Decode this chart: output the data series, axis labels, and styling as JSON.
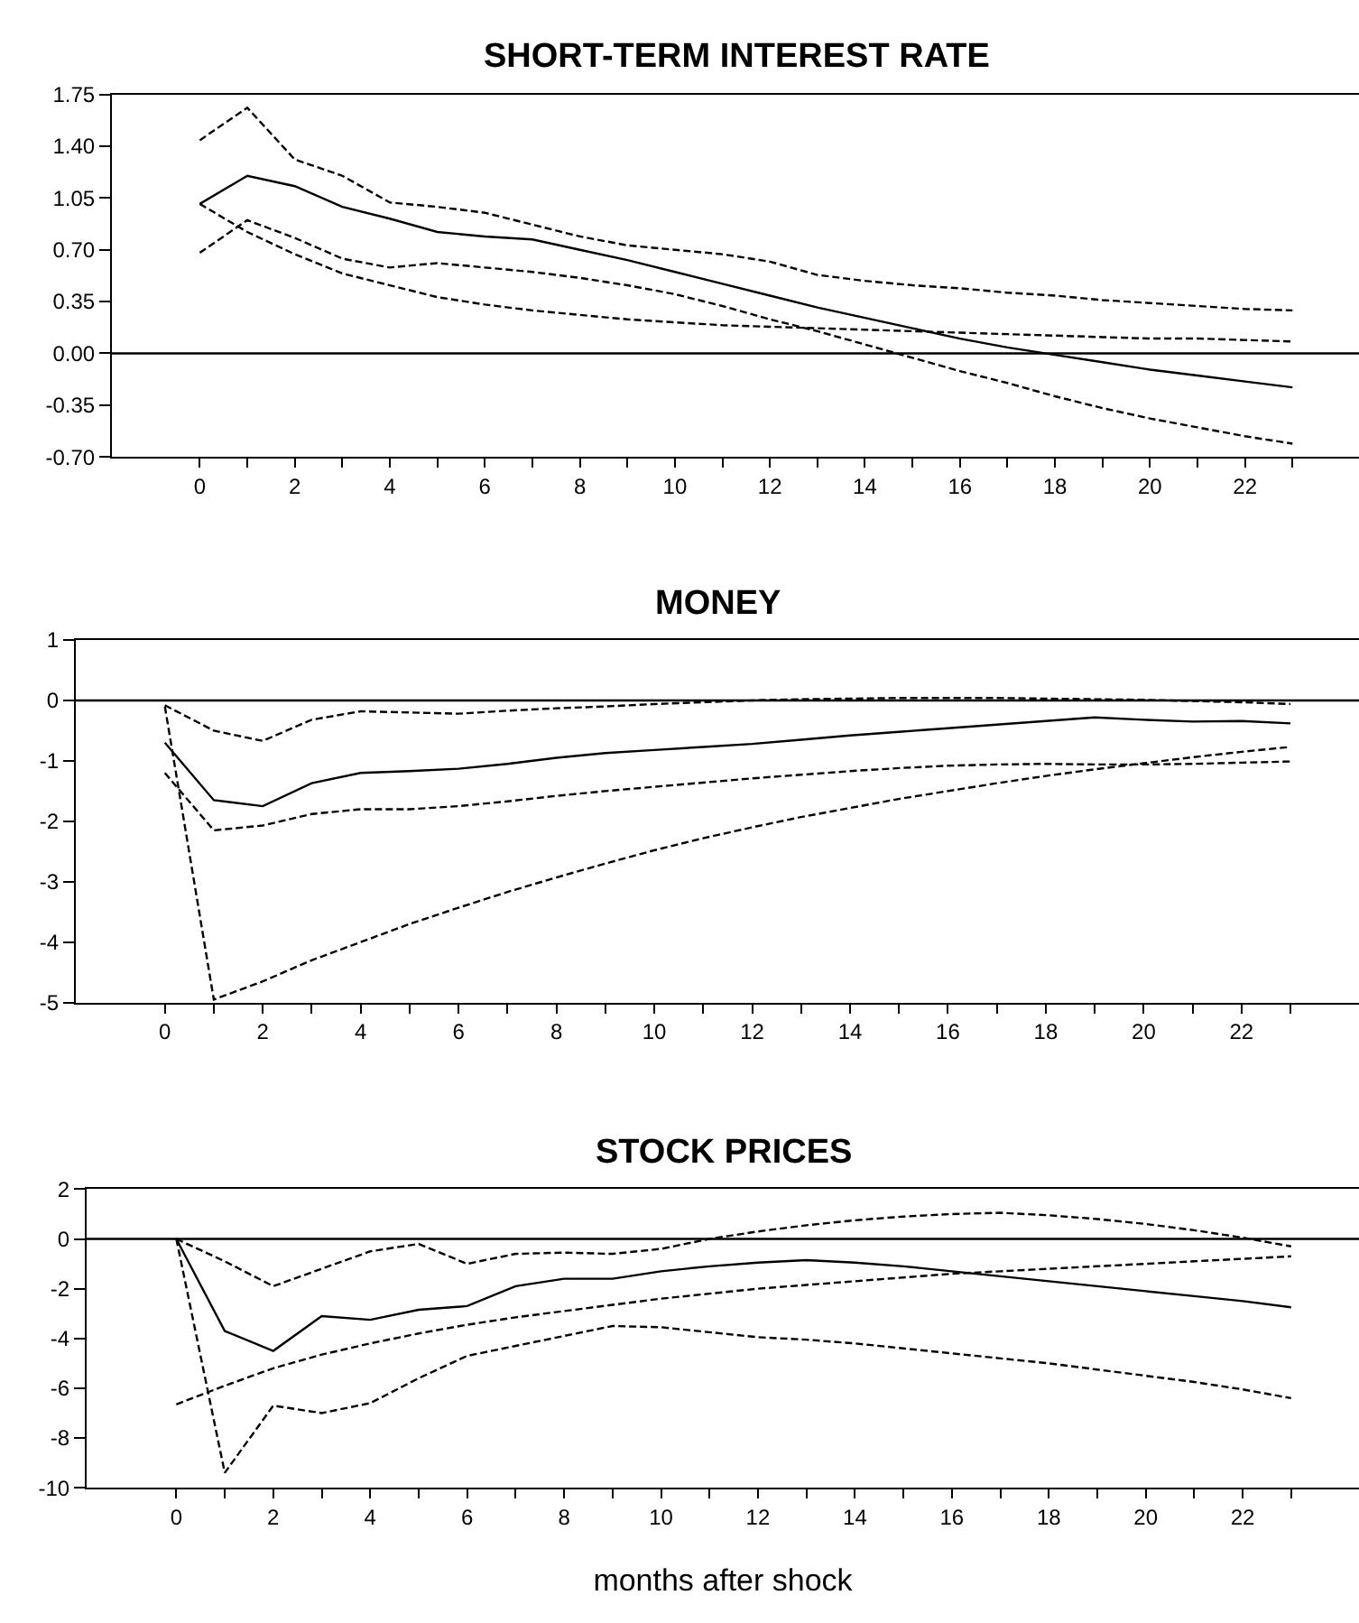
{
  "chart_data": [
    {
      "type": "line",
      "title": "SHORT-TERM INTEREST RATE",
      "x": [
        0,
        1,
        2,
        3,
        4,
        5,
        6,
        7,
        8,
        9,
        10,
        11,
        12,
        13,
        14,
        15,
        16,
        17,
        18,
        19,
        20,
        21,
        22,
        23
      ],
      "series": [
        {
          "color": "#000000",
          "line_style": "solid",
          "values": [
            1.01,
            1.2,
            1.13,
            0.99,
            0.91,
            0.82,
            0.79,
            0.77,
            0.7,
            0.63,
            0.55,
            0.47,
            0.39,
            0.31,
            0.24,
            0.17,
            0.1,
            0.04,
            -0.01,
            -0.06,
            -0.11,
            -0.15,
            -0.19,
            -0.23
          ]
        },
        {
          "color": "#000000",
          "line_style": "dashed",
          "values": [
            1.44,
            1.66,
            1.31,
            1.2,
            1.02,
            0.99,
            0.95,
            0.87,
            0.79,
            0.73,
            0.7,
            0.67,
            0.62,
            0.53,
            0.49,
            0.46,
            0.44,
            0.41,
            0.39,
            0.36,
            0.34,
            0.32,
            0.3,
            0.29
          ]
        },
        {
          "color": "#000000",
          "line_style": "dashed",
          "values": [
            0.68,
            0.9,
            0.78,
            0.64,
            0.58,
            0.61,
            0.58,
            0.55,
            0.51,
            0.46,
            0.4,
            0.32,
            0.23,
            0.15,
            0.06,
            -0.03,
            -0.12,
            -0.2,
            -0.29,
            -0.37,
            -0.44,
            -0.5,
            -0.56,
            -0.61
          ]
        },
        {
          "color": "#000000",
          "line_style": "dashed",
          "values": [
            1.01,
            0.82,
            0.67,
            0.54,
            0.46,
            0.38,
            0.33,
            0.29,
            0.26,
            0.23,
            0.21,
            0.19,
            0.18,
            0.17,
            0.16,
            0.15,
            0.14,
            0.13,
            0.12,
            0.11,
            0.1,
            0.1,
            0.09,
            0.08
          ]
        }
      ],
      "xlim": [
        -1.85,
        24.4
      ],
      "xticks": [
        0,
        {
          "value": 1,
          "label": null
        },
        2,
        {
          "value": 3,
          "label": null
        },
        4,
        {
          "value": 5,
          "label": null
        },
        6,
        {
          "value": 7,
          "label": null
        },
        8,
        {
          "value": 9,
          "label": null
        },
        10,
        {
          "value": 11,
          "label": null
        },
        12,
        {
          "value": 13,
          "label": null
        },
        14,
        {
          "value": 15,
          "label": null
        },
        16,
        {
          "value": 17,
          "label": null
        },
        18,
        {
          "value": 19,
          "label": null
        },
        20,
        {
          "value": 21,
          "label": null
        },
        22,
        {
          "value": 23,
          "label": null
        }
      ],
      "ylim": [
        -0.7,
        1.75
      ],
      "yticks": [
        {
          "value": -0.7,
          "label": "-0.70"
        },
        {
          "value": -0.35,
          "label": "-0.35"
        },
        {
          "value": 0,
          "label": "0.00"
        },
        {
          "value": 0.35,
          "label": "0.35"
        },
        {
          "value": 0.7,
          "label": "0.70"
        },
        {
          "value": 1.05,
          "label": "1.05"
        },
        {
          "value": 1.4,
          "label": "1.40"
        },
        {
          "value": 1.75,
          "label": "1.75"
        }
      ],
      "ref_lines": [
        {
          "axis": "y",
          "value": 0,
          "color": "#000000"
        }
      ]
    },
    {
      "type": "line",
      "title": "MONEY",
      "x": [
        0,
        1,
        2,
        3,
        4,
        5,
        6,
        7,
        8,
        9,
        10,
        11,
        12,
        13,
        14,
        15,
        16,
        17,
        18,
        19,
        20,
        21,
        22,
        23
      ],
      "series": [
        {
          "color": "#000000",
          "line_style": "solid",
          "values": [
            -0.7,
            -1.65,
            -1.75,
            -1.37,
            -1.2,
            -1.17,
            -1.13,
            -1.05,
            -0.95,
            -0.87,
            -0.82,
            -0.77,
            -0.72,
            -0.65,
            -0.58,
            -0.52,
            -0.46,
            -0.4,
            -0.34,
            -0.28,
            -0.32,
            -0.35,
            -0.34,
            -0.38
          ]
        },
        {
          "color": "#000000",
          "line_style": "dashed",
          "values": [
            -0.08,
            -0.5,
            -0.67,
            -0.32,
            -0.18,
            -0.2,
            -0.22,
            -0.17,
            -0.13,
            -0.1,
            -0.06,
            -0.03,
            0.0,
            0.02,
            0.03,
            0.04,
            0.04,
            0.04,
            0.03,
            0.02,
            0.01,
            -0.01,
            -0.03,
            -0.06
          ]
        },
        {
          "color": "#000000",
          "line_style": "dashed",
          "values": [
            -1.2,
            -2.15,
            -2.07,
            -1.88,
            -1.8,
            -1.8,
            -1.75,
            -1.67,
            -1.58,
            -1.5,
            -1.43,
            -1.36,
            -1.29,
            -1.23,
            -1.17,
            -1.12,
            -1.08,
            -1.06,
            -1.05,
            -1.06,
            -1.06,
            -1.05,
            -1.03,
            -1.01
          ]
        },
        {
          "color": "#000000",
          "line_style": "dashed",
          "values": [
            -0.1,
            -4.95,
            -4.65,
            -4.3,
            -4.0,
            -3.7,
            -3.43,
            -3.17,
            -2.93,
            -2.7,
            -2.48,
            -2.28,
            -2.1,
            -1.93,
            -1.78,
            -1.63,
            -1.5,
            -1.37,
            -1.25,
            -1.14,
            -1.04,
            -0.94,
            -0.85,
            -0.77
          ]
        }
      ],
      "xlim": [
        -1.82,
        24.4
      ],
      "xticks": [
        0,
        {
          "value": 1,
          "label": null
        },
        2,
        {
          "value": 3,
          "label": null
        },
        4,
        {
          "value": 5,
          "label": null
        },
        6,
        {
          "value": 7,
          "label": null
        },
        8,
        {
          "value": 9,
          "label": null
        },
        10,
        {
          "value": 11,
          "label": null
        },
        12,
        {
          "value": 13,
          "label": null
        },
        14,
        {
          "value": 15,
          "label": null
        },
        16,
        {
          "value": 17,
          "label": null
        },
        18,
        {
          "value": 19,
          "label": null
        },
        20,
        {
          "value": 21,
          "label": null
        },
        22,
        {
          "value": 23,
          "label": null
        }
      ],
      "ylim": [
        -5,
        1
      ],
      "yticks": [
        -5,
        -4,
        -3,
        -2,
        -1,
        0,
        1
      ],
      "ref_lines": [
        {
          "axis": "y",
          "value": 0,
          "color": "#000000"
        }
      ]
    },
    {
      "type": "line",
      "title": "STOCK PRICES",
      "xlabel": "months after shock",
      "x": [
        0,
        1,
        2,
        3,
        4,
        5,
        6,
        7,
        8,
        9,
        10,
        11,
        12,
        13,
        14,
        15,
        16,
        17,
        18,
        19,
        20,
        21,
        22,
        23
      ],
      "series": [
        {
          "color": "#000000",
          "line_style": "solid",
          "values": [
            0,
            -3.7,
            -4.5,
            -3.1,
            -3.25,
            -2.85,
            -2.7,
            -1.9,
            -1.6,
            -1.6,
            -1.3,
            -1.1,
            -0.95,
            -0.85,
            -0.95,
            -1.1,
            -1.3,
            -1.5,
            -1.7,
            -1.9,
            -2.1,
            -2.3,
            -2.5,
            -2.75
          ]
        },
        {
          "color": "#000000",
          "line_style": "dashed",
          "values": [
            0,
            -0.9,
            -1.9,
            -1.2,
            -0.5,
            -0.2,
            -1.0,
            -0.6,
            -0.55,
            -0.6,
            -0.4,
            0.0,
            0.3,
            0.55,
            0.75,
            0.9,
            1.0,
            1.05,
            0.95,
            0.8,
            0.6,
            0.35,
            0.05,
            -0.3
          ]
        },
        {
          "color": "#000000",
          "line_style": "dashed",
          "values": [
            0,
            -9.4,
            -6.7,
            -7.0,
            -6.6,
            -5.6,
            -4.7,
            -4.3,
            -3.9,
            -3.5,
            -3.55,
            -3.75,
            -3.95,
            -4.05,
            -4.2,
            -4.4,
            -4.6,
            -4.8,
            -5.0,
            -5.25,
            -5.5,
            -5.75,
            -6.05,
            -6.4
          ]
        },
        {
          "color": "#000000",
          "line_style": "dashed",
          "values": [
            -6.65,
            -5.9,
            -5.2,
            -4.65,
            -4.2,
            -3.8,
            -3.45,
            -3.15,
            -2.9,
            -2.65,
            -2.4,
            -2.2,
            -2.0,
            -1.85,
            -1.7,
            -1.55,
            -1.4,
            -1.3,
            -1.2,
            -1.1,
            -1.0,
            -0.9,
            -0.8,
            -0.7
          ]
        }
      ],
      "xlim": [
        -1.85,
        24.4
      ],
      "xticks": [
        0,
        {
          "value": 1,
          "label": null
        },
        2,
        {
          "value": 3,
          "label": null
        },
        4,
        {
          "value": 5,
          "label": null
        },
        6,
        {
          "value": 7,
          "label": null
        },
        8,
        {
          "value": 9,
          "label": null
        },
        10,
        {
          "value": 11,
          "label": null
        },
        12,
        {
          "value": 13,
          "label": null
        },
        14,
        {
          "value": 15,
          "label": null
        },
        16,
        {
          "value": 17,
          "label": null
        },
        18,
        {
          "value": 19,
          "label": null
        },
        20,
        {
          "value": 21,
          "label": null
        },
        22,
        {
          "value": 23,
          "label": null
        }
      ],
      "ylim": [
        -10,
        2
      ],
      "yticks": [
        -10,
        -8,
        -6,
        -4,
        -2,
        0,
        2
      ],
      "ref_lines": [
        {
          "axis": "y",
          "value": 0,
          "color": "#000000"
        }
      ]
    }
  ]
}
